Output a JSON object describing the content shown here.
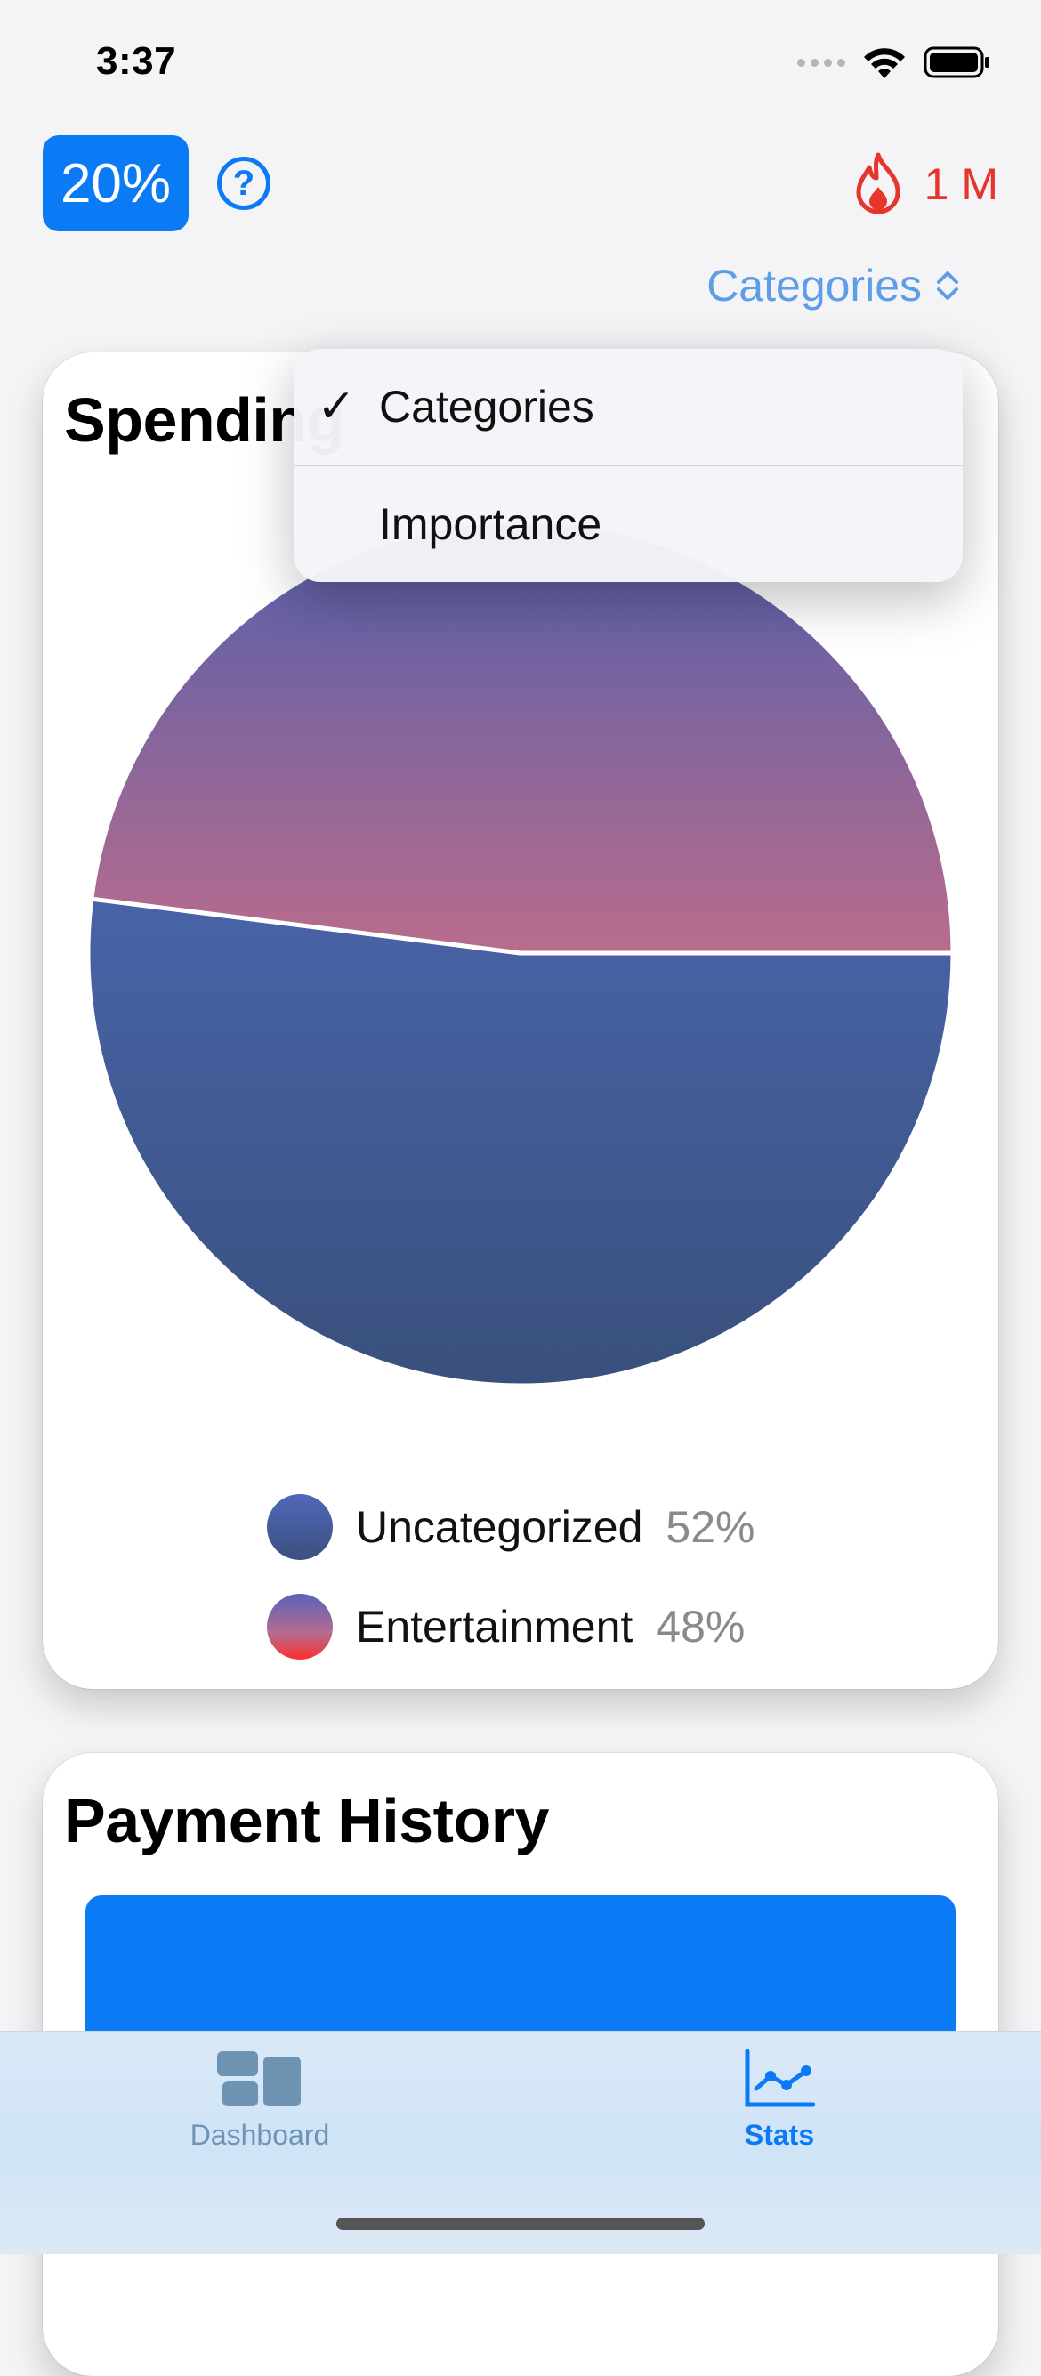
{
  "status_bar": {
    "time": "3:37"
  },
  "header": {
    "percent_badge": "20%",
    "help_symbol": "?",
    "streak_value": "1 M",
    "picker_label": "Categories"
  },
  "spending_card": {
    "title": "Spending",
    "legend": [
      {
        "label": "Uncategorized",
        "percent": "52%"
      },
      {
        "label": "Entertainment",
        "percent": "48%"
      }
    ]
  },
  "chart_data": {
    "type": "pie",
    "categories": [
      "Uncategorized",
      "Entertainment"
    ],
    "values": [
      52,
      48
    ],
    "title": "Spending"
  },
  "dropdown": {
    "items": [
      {
        "label": "Categories",
        "checked": true
      },
      {
        "label": "Importance",
        "checked": false
      }
    ]
  },
  "payment_card": {
    "title": "Payment History"
  },
  "tab_bar": {
    "tabs": [
      {
        "label": "Dashboard",
        "icon": "dashboard-icon",
        "active": false
      },
      {
        "label": "Stats",
        "icon": "chart-line-icon",
        "active": true
      }
    ]
  },
  "colors": {
    "accent": "#0a7af5",
    "streak": "#e6352c",
    "picker": "#5e9ee6",
    "tab_inactive": "#6f93b3"
  }
}
